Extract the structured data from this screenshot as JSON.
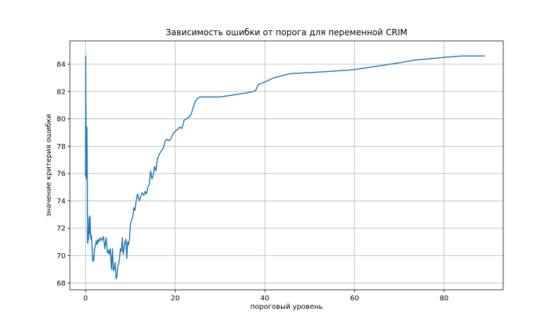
{
  "chart_data": {
    "type": "line",
    "title": "Зависимость ошибки от порога для переменной CRIM",
    "xlabel": "пороговый уровень",
    "ylabel": "значение критерия ошибки",
    "xlim": [
      -3.5,
      93.2
    ],
    "ylim": [
      67.5,
      85.7
    ],
    "x_ticks": [
      0,
      20,
      40,
      60,
      80
    ],
    "y_ticks": [
      68,
      70,
      72,
      74,
      76,
      78,
      80,
      82,
      84
    ],
    "grid": true,
    "legend": "none",
    "series": [
      {
        "color": "#1f77b4",
        "x": [
          0.0,
          0.05,
          0.08,
          0.1,
          0.13,
          0.16,
          0.2,
          0.23,
          0.27,
          0.3,
          0.35,
          0.4,
          0.45,
          0.5,
          0.55,
          0.6,
          0.65,
          0.7,
          0.8,
          0.9,
          1.0,
          1.1,
          1.2,
          1.3,
          1.4,
          1.5,
          1.6,
          1.7,
          1.8,
          2.0,
          2.2,
          2.4,
          2.6,
          2.8,
          3.0,
          3.3,
          3.6,
          4.0,
          4.3,
          4.6,
          4.9,
          5.1,
          5.3,
          5.5,
          5.8,
          6.0,
          6.2,
          6.4,
          6.6,
          6.8,
          7.0,
          7.2,
          7.5,
          7.8,
          8.0,
          8.2,
          8.4,
          8.6,
          8.8,
          9.0,
          9.2,
          9.4,
          9.6,
          9.8,
          10.0,
          10.2,
          10.5,
          10.8,
          11.0,
          11.3,
          11.6,
          12.0,
          12.3,
          12.6,
          13.0,
          13.3,
          13.6,
          13.9,
          14.2,
          14.5,
          14.8,
          15.1,
          15.4,
          15.7,
          16.0,
          16.3,
          16.6,
          17.0,
          17.4,
          17.8,
          18.2,
          18.6,
          19.0,
          19.5,
          20.0,
          20.5,
          21.0,
          21.5,
          22.0,
          22.5,
          23.0,
          23.5,
          24.0,
          24.5,
          25.0,
          25.5,
          26.0,
          27.0,
          28.0,
          29.0,
          30.0,
          32.0,
          34.0,
          36.0,
          37.5,
          38.0,
          38.5,
          40.0,
          42.0,
          45.5,
          51.0,
          56.0,
          60.0,
          64.0,
          68.0,
          70.0,
          73.5,
          77.0,
          80.0,
          84.0,
          89.0
        ],
        "values": [
          75.8,
          84.6,
          77.5,
          81.0,
          76.0,
          78.5,
          75.6,
          79.4,
          77.0,
          79.4,
          77.2,
          73.5,
          71.0,
          70.9,
          71.1,
          71.8,
          71.2,
          72.0,
          72.8,
          71.6,
          72.9,
          71.5,
          71.2,
          71.5,
          71.0,
          70.3,
          69.6,
          69.8,
          69.6,
          70.5,
          70.7,
          71.1,
          70.8,
          71.2,
          71.0,
          71.3,
          71.1,
          71.4,
          70.5,
          71.3,
          70.2,
          70.4,
          70.1,
          70.5,
          69.0,
          70.5,
          68.9,
          69.0,
          69.5,
          68.3,
          68.5,
          69.2,
          69.6,
          70.5,
          70.3,
          71.3,
          70.1,
          70.5,
          71.0,
          71.2,
          69.8,
          71.0,
          70.8,
          71.2,
          72.3,
          72.5,
          72.8,
          73.5,
          73.3,
          74.0,
          74.5,
          74.0,
          74.3,
          74.6,
          74.4,
          74.7,
          74.5,
          75.0,
          75.2,
          76.2,
          75.6,
          75.9,
          76.5,
          76.2,
          77.0,
          77.3,
          77.5,
          77.7,
          77.9,
          78.4,
          78.5,
          78.4,
          78.5,
          78.9,
          79.1,
          79.2,
          79.4,
          79.3,
          79.9,
          80.0,
          80.1,
          80.3,
          80.8,
          81.3,
          81.5,
          81.6,
          81.6,
          81.6,
          81.6,
          81.6,
          81.6,
          81.7,
          81.8,
          81.9,
          82.0,
          82.1,
          82.5,
          82.7,
          83.0,
          83.3,
          83.4,
          83.5,
          83.6,
          83.8,
          84.0,
          84.1,
          84.3,
          84.4,
          84.5,
          84.6,
          84.6
        ]
      }
    ]
  }
}
